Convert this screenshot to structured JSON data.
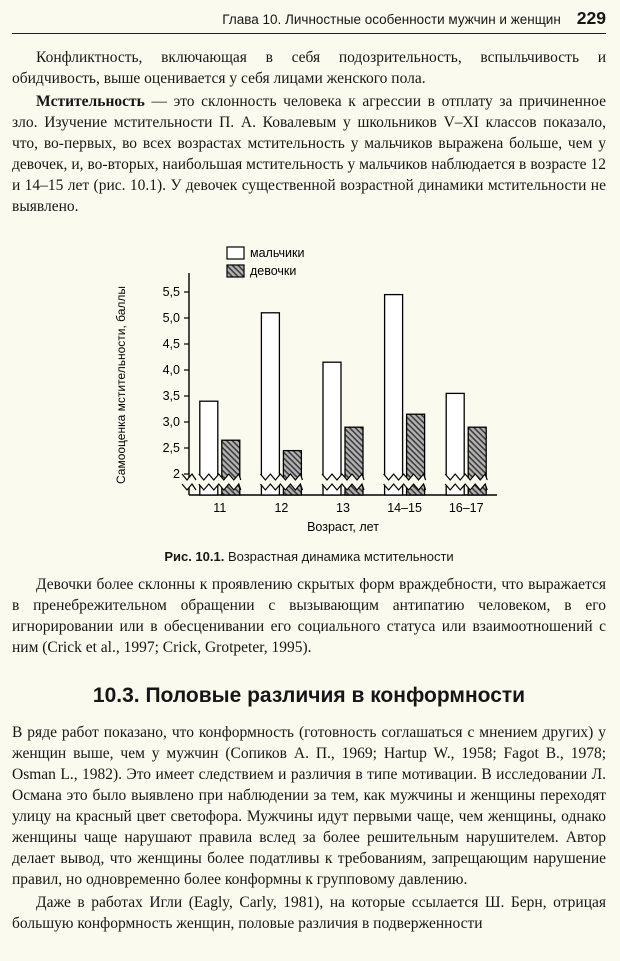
{
  "page": {
    "background": "#fbfaee",
    "header": {
      "chapter": "Глава 10. Личностные особенности мужчин и женщин",
      "page_number": "229"
    },
    "paragraphs": {
      "p1": "Конфликтность, включающая в себя подозрительность, вспыльчивость и обидчивость, выше оценивается у себя лицами женского пола.",
      "p2_lead": "Мстительность",
      "p2_rest": " — это склонность человека к агрессии в отплату за причиненное зло. Изучение мстительности П. А. Ковалевым у школьников V–XI классов показало, что, во-первых, во всех возрастах мстительность у мальчиков выражена больше, чем у девочек, и, во-вторых, наибольшая мстительность у мальчиков наблюдается в возрасте 12 и 14–15 лет (рис. 10.1). У девочек существенной возрастной динамики мстительности не выявлено.",
      "p3": "Девочки более склонны к проявлению скрытых форм враждебности, что выражается в пренебрежительном обращении с вызывающим антипатию человеком, в его игнорировании или в обесценивании его социального статуса или взаимоотношений с ним (Crick et al., 1997; Crick, Grotpeter, 1995).",
      "p4": "В ряде работ показано, что конформность (готовность соглашаться с мнением других) у женщин выше, чем у мужчин (Сопиков А. П., 1969; Hartup W., 1958; Fagot B., 1978; Osman L., 1982). Это имеет следствием и различия в типе мотивации. В исследовании Л. Османа это было выявлено при наблюдении за тем, как мужчины и женщины переходят улицу на красный цвет светофора. Мужчины идут первыми чаще, чем женщины, однако женщины чаще нарушают правила вслед за более решительным нарушителем. Автор делает вывод, что женщины более податливы к требованиям, запрещающим нарушение правил, но одновременно более конформны к групповому давлению.",
      "p5": "Даже в работах Игли (Eagly, Carly, 1981), на которые ссылается Ш. Берн, отрицая большую конформность женщин, половые различия в подверженности"
    },
    "section_heading": "10.3. Половые различия в конформности",
    "figure": {
      "caption_label": "Рис. 10.1.",
      "caption_text": "Возрастная динамика мстительности"
    }
  },
  "chart_data": {
    "type": "bar",
    "title": "",
    "categories": [
      "11",
      "12",
      "13",
      "14–15",
      "16–17"
    ],
    "series": [
      {
        "name": "мальчики",
        "values": [
          3.4,
          5.1,
          4.15,
          5.45,
          3.55
        ]
      },
      {
        "name": "девочки",
        "values": [
          2.65,
          2.45,
          2.9,
          3.15,
          2.9
        ]
      }
    ],
    "xlabel": "Возраст, лет",
    "ylabel": "Самооценка мстительности, баллы",
    "yticks": [
      {
        "label": "2",
        "v": 2
      },
      {
        "label": "2,5",
        "v": 2.5
      },
      {
        "label": "3,0",
        "v": 3
      },
      {
        "label": "3,5",
        "v": 3.5
      },
      {
        "label": "4,0",
        "v": 4
      },
      {
        "label": "4,5",
        "v": 4.5
      },
      {
        "label": "5,0",
        "v": 5
      },
      {
        "label": "5,5",
        "v": 5.5
      }
    ],
    "ylim": [
      2,
      5.8
    ],
    "axis_break": true,
    "grid": false,
    "legend_position": "top-left",
    "colors": {
      "boys_fill": "#ffffff",
      "girls_fill_base": "#b3b3b3",
      "girls_hatch": "#3c3c3c",
      "axis": "#000000"
    }
  }
}
